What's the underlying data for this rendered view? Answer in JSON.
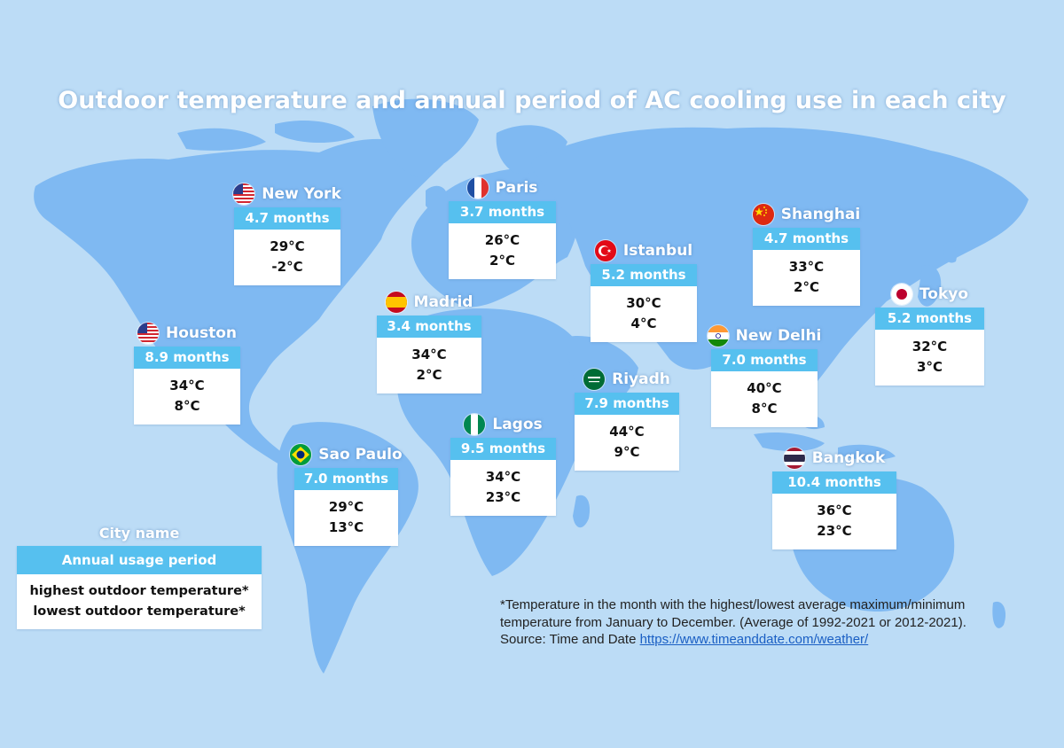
{
  "title": "Outdoor temperature and annual period of AC cooling use in each city",
  "colors": {
    "background": "#bcdcf6",
    "land": "#7fb9f2",
    "period_band": "#56c0ef",
    "card": "#ffffff"
  },
  "cities": {
    "new_york": {
      "name": "New York",
      "flag": "usa-flag-icon",
      "period": "4.7 months",
      "high": "29°C",
      "low": "-2°C"
    },
    "paris": {
      "name": "Paris",
      "flag": "france-flag-icon",
      "period": "3.7 months",
      "high": "26°C",
      "low": "2°C"
    },
    "shanghai": {
      "name": "Shanghai",
      "flag": "china-flag-icon",
      "period": "4.7 months",
      "high": "33°C",
      "low": "2°C"
    },
    "istanbul": {
      "name": "Istanbul",
      "flag": "turkey-flag-icon",
      "period": "5.2 months",
      "high": "30°C",
      "low": "4°C"
    },
    "tokyo": {
      "name": "Tokyo",
      "flag": "japan-flag-icon",
      "period": "5.2 months",
      "high": "32°C",
      "low": "3°C"
    },
    "madrid": {
      "name": "Madrid",
      "flag": "spain-flag-icon",
      "period": "3.4 months",
      "high": "34°C",
      "low": "2°C"
    },
    "houston": {
      "name": "Houston",
      "flag": "usa-flag-icon",
      "period": "8.9 months",
      "high": "34°C",
      "low": "8°C"
    },
    "new_delhi": {
      "name": "New Delhi",
      "flag": "india-flag-icon",
      "period": "7.0 months",
      "high": "40°C",
      "low": "8°C"
    },
    "riyadh": {
      "name": "Riyadh",
      "flag": "saudi-arabia-flag-icon",
      "period": "7.9 months",
      "high": "44°C",
      "low": "9°C"
    },
    "lagos": {
      "name": "Lagos",
      "flag": "nigeria-flag-icon",
      "period": "9.5 months",
      "high": "34°C",
      "low": "23°C"
    },
    "sao_paulo": {
      "name": "Sao Paulo",
      "flag": "brazil-flag-icon",
      "period": "7.0 months",
      "high": "29°C",
      "low": "13°C"
    },
    "bangkok": {
      "name": "Bangkok",
      "flag": "thailand-flag-icon",
      "period": "10.4 months",
      "high": "36°C",
      "low": "23°C"
    }
  },
  "legend": {
    "city_name": "City name",
    "period": "Annual usage period",
    "high": "highest outdoor  temperature*",
    "low": "lowest outdoor  temperature*"
  },
  "note": {
    "line1": "*Temperature in the month with the highest/lowest average maximum/minimum",
    "line2": "temperature from January to December. (Average of 1992-2021 or 2012-2021).",
    "source_prefix": "Source: Time and Date ",
    "source_link": "https://www.timeanddate.com/weather/"
  }
}
